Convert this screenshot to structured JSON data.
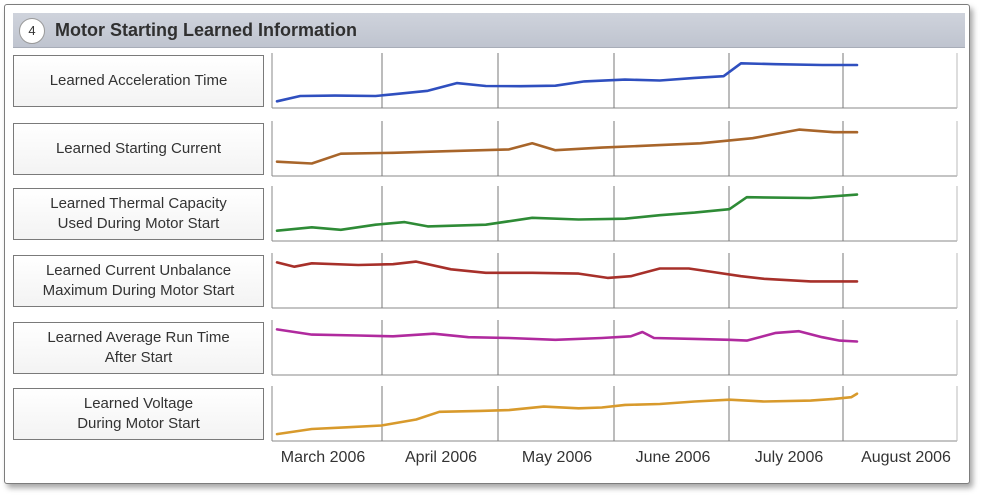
{
  "header": {
    "number": "4",
    "title": "Motor Starting Learned Information"
  },
  "chart_data": {
    "type": "line",
    "x_tick_labels": [
      "March 2006",
      "April 2006",
      "May 2006",
      "June 2006",
      "July 2006",
      "August 2006"
    ],
    "x_domain": [
      0,
      5
    ],
    "series": [
      {
        "name": "Learned Acceleration Time",
        "color": "#2f4fbf",
        "points": [
          [
            0,
            0.04
          ],
          [
            0.2,
            0.35
          ],
          [
            0.5,
            0.37
          ],
          [
            0.85,
            0.35
          ],
          [
            1.0,
            0.45
          ],
          [
            1.3,
            0.65
          ],
          [
            1.55,
            1.1
          ],
          [
            1.8,
            0.93
          ],
          [
            2.1,
            0.92
          ],
          [
            2.4,
            0.95
          ],
          [
            2.65,
            1.2
          ],
          [
            3.0,
            1.3
          ],
          [
            3.3,
            1.25
          ],
          [
            3.6,
            1.4
          ],
          [
            3.85,
            1.5
          ],
          [
            4.0,
            2.25
          ],
          [
            4.3,
            2.2
          ],
          [
            4.7,
            2.15
          ],
          [
            5.0,
            2.15
          ]
        ]
      },
      {
        "name": "Learned Starting Current",
        "color": "#a8652a",
        "points": [
          [
            0,
            0.48
          ],
          [
            0.3,
            0.38
          ],
          [
            0.55,
            0.95
          ],
          [
            1.0,
            1.0
          ],
          [
            1.5,
            1.1
          ],
          [
            2.0,
            1.2
          ],
          [
            2.2,
            1.55
          ],
          [
            2.4,
            1.15
          ],
          [
            2.8,
            1.3
          ],
          [
            3.3,
            1.45
          ],
          [
            3.65,
            1.55
          ],
          [
            4.1,
            1.85
          ],
          [
            4.5,
            2.35
          ],
          [
            4.8,
            2.2
          ],
          [
            5.0,
            2.2
          ]
        ]
      },
      {
        "name": "Learned Thermal Capacity Used During Motor Start",
        "color": "#2e8b36",
        "points": [
          [
            0,
            0.25
          ],
          [
            0.3,
            0.45
          ],
          [
            0.55,
            0.3
          ],
          [
            0.85,
            0.6
          ],
          [
            1.1,
            0.75
          ],
          [
            1.3,
            0.5
          ],
          [
            1.8,
            0.6
          ],
          [
            2.2,
            1.0
          ],
          [
            2.6,
            0.9
          ],
          [
            3.0,
            0.95
          ],
          [
            3.3,
            1.15
          ],
          [
            3.6,
            1.3
          ],
          [
            3.9,
            1.5
          ],
          [
            4.05,
            2.2
          ],
          [
            4.6,
            2.15
          ],
          [
            5.0,
            2.35
          ]
        ]
      },
      {
        "name": "Learned Current Unbalance Maximum During Motor Start",
        "color": "#a7302a",
        "points": [
          [
            0,
            2.3
          ],
          [
            0.15,
            2.05
          ],
          [
            0.3,
            2.25
          ],
          [
            0.7,
            2.15
          ],
          [
            1.0,
            2.2
          ],
          [
            1.2,
            2.35
          ],
          [
            1.5,
            1.9
          ],
          [
            1.8,
            1.7
          ],
          [
            2.2,
            1.7
          ],
          [
            2.6,
            1.65
          ],
          [
            2.85,
            1.4
          ],
          [
            3.05,
            1.5
          ],
          [
            3.3,
            1.95
          ],
          [
            3.55,
            1.95
          ],
          [
            3.75,
            1.75
          ],
          [
            4.0,
            1.5
          ],
          [
            4.2,
            1.35
          ],
          [
            4.6,
            1.2
          ],
          [
            5.0,
            1.2
          ]
        ]
      },
      {
        "name": "Learned Average Run Time After Start",
        "color": "#b02a9e",
        "points": [
          [
            0,
            2.3
          ],
          [
            0.3,
            2.0
          ],
          [
            0.7,
            1.95
          ],
          [
            1.0,
            1.9
          ],
          [
            1.35,
            2.05
          ],
          [
            1.65,
            1.85
          ],
          [
            2.0,
            1.8
          ],
          [
            2.4,
            1.7
          ],
          [
            2.8,
            1.8
          ],
          [
            3.05,
            1.9
          ],
          [
            3.15,
            2.15
          ],
          [
            3.25,
            1.8
          ],
          [
            3.6,
            1.75
          ],
          [
            3.9,
            1.7
          ],
          [
            4.05,
            1.65
          ],
          [
            4.3,
            2.1
          ],
          [
            4.5,
            2.2
          ],
          [
            4.7,
            1.85
          ],
          [
            4.85,
            1.65
          ],
          [
            5.0,
            1.6
          ]
        ]
      },
      {
        "name": "Learned Voltage During Motor Start",
        "color": "#d89a2c",
        "points": [
          [
            0,
            0.05
          ],
          [
            0.3,
            0.35
          ],
          [
            0.6,
            0.45
          ],
          [
            0.9,
            0.55
          ],
          [
            1.2,
            0.9
          ],
          [
            1.4,
            1.35
          ],
          [
            1.75,
            1.4
          ],
          [
            2.0,
            1.45
          ],
          [
            2.3,
            1.65
          ],
          [
            2.6,
            1.55
          ],
          [
            2.8,
            1.6
          ],
          [
            3.0,
            1.75
          ],
          [
            3.3,
            1.8
          ],
          [
            3.6,
            1.95
          ],
          [
            3.9,
            2.05
          ],
          [
            4.2,
            1.95
          ],
          [
            4.6,
            2.0
          ],
          [
            4.8,
            2.1
          ],
          [
            4.95,
            2.2
          ],
          [
            5.0,
            2.4
          ]
        ]
      }
    ],
    "y_range": [
      0,
      2.5
    ],
    "grid": true
  }
}
